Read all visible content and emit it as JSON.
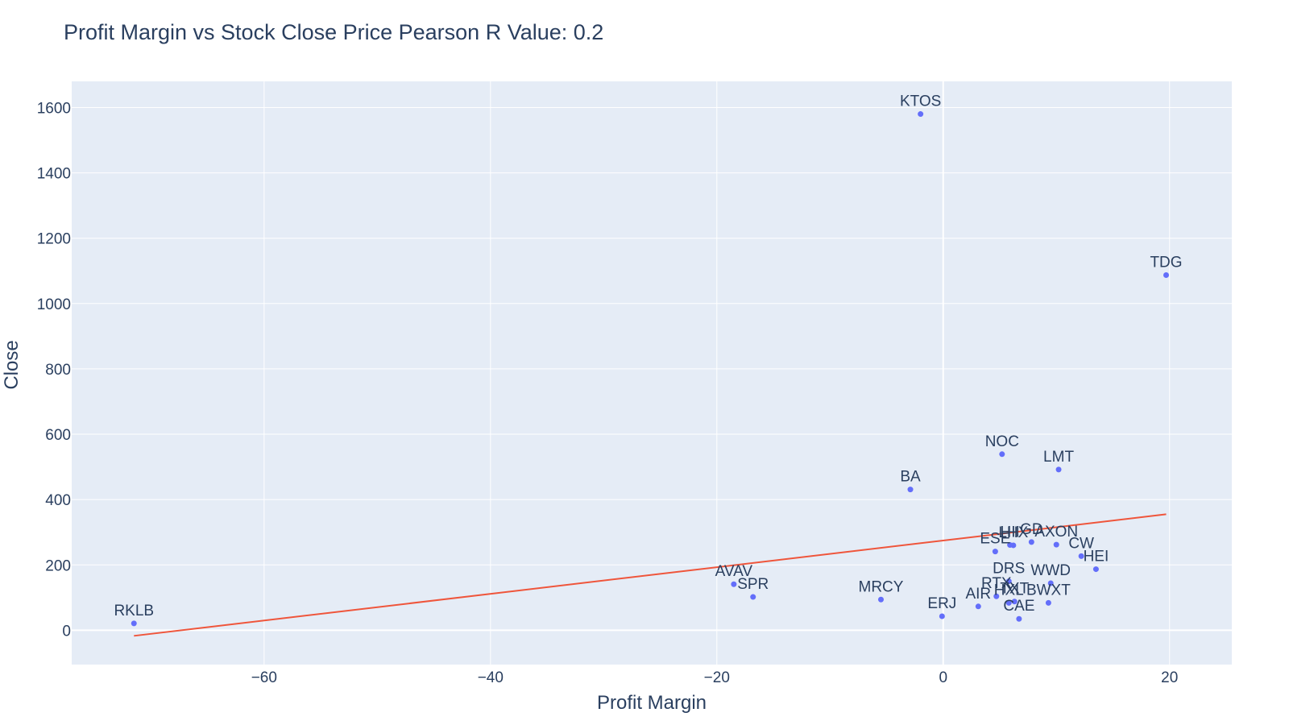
{
  "chart_data": {
    "type": "scatter",
    "title": "Profit Margin vs Stock Close Price  Pearson R Value: 0.2",
    "xlabel": "Profit Margin",
    "ylabel": "Close",
    "xlim": [
      -77,
      25.5
    ],
    "ylim": [
      -105,
      1680
    ],
    "xticks": [
      -60,
      -40,
      -20,
      0,
      20
    ],
    "xtick_labels": [
      "−60",
      "−40",
      "−20",
      "0",
      "20"
    ],
    "yticks": [
      0,
      200,
      400,
      600,
      800,
      1000,
      1200,
      1400,
      1600
    ],
    "yticks_labels": [
      "0",
      "200",
      "400",
      "600",
      "800",
      "1000",
      "1200",
      "1400",
      "1600"
    ],
    "grid": true,
    "colors": {
      "plot_bg": "#e5ecf6",
      "grid": "#ffffff",
      "marker": "#636efa",
      "trendline": "#ef553b",
      "text": "#2a3f5f"
    },
    "points": [
      {
        "label": "KTOS",
        "x": -2.0,
        "y": 1580
      },
      {
        "label": "TDG",
        "x": 19.7,
        "y": 1087
      },
      {
        "label": "NOC",
        "x": 5.2,
        "y": 539
      },
      {
        "label": "LMT",
        "x": 10.2,
        "y": 492
      },
      {
        "label": "BA",
        "x": -2.9,
        "y": 431
      },
      {
        "label": "GD",
        "x": 7.8,
        "y": 270
      },
      {
        "label": "AXON",
        "x": 10.0,
        "y": 262
      },
      {
        "label": "HII",
        "x": 5.9,
        "y": 261
      },
      {
        "label": "LHX",
        "x": 6.2,
        "y": 260
      },
      {
        "label": "ESE",
        "x": 4.6,
        "y": 241
      },
      {
        "label": "CW",
        "x": 12.2,
        "y": 227
      },
      {
        "label": "HEI",
        "x": 13.5,
        "y": 187
      },
      {
        "label": "DRS",
        "x": 5.8,
        "y": 150
      },
      {
        "label": "WWD",
        "x": 9.5,
        "y": 144
      },
      {
        "label": "AVAV",
        "x": -18.5,
        "y": 141
      },
      {
        "label": "RTX",
        "x": 4.7,
        "y": 104
      },
      {
        "label": "SPR",
        "x": -16.8,
        "y": 102
      },
      {
        "label": "MRCY",
        "x": -5.5,
        "y": 94
      },
      {
        "label": "TXT",
        "x": 6.3,
        "y": 88
      },
      {
        "label": "HXL",
        "x": 5.8,
        "y": 84
      },
      {
        "label": "BWXT",
        "x": 9.3,
        "y": 84
      },
      {
        "label": "AIR",
        "x": 3.1,
        "y": 73
      },
      {
        "label": "ERJ",
        "x": -0.1,
        "y": 43
      },
      {
        "label": "CAE",
        "x": 6.7,
        "y": 35
      },
      {
        "label": "RKLB",
        "x": -71.5,
        "y": 21
      }
    ],
    "trendline": {
      "x": [
        -71.5,
        19.7
      ],
      "y": [
        -17,
        355
      ]
    }
  }
}
